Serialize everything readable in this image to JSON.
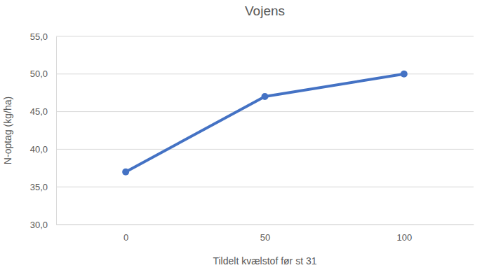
{
  "chart_data": {
    "type": "line",
    "title": "Vojens",
    "x_label": "Tildelt kvælstof før st 31",
    "y_label": "N-optag (kg/ha)",
    "categories": [
      "0",
      "50",
      "100"
    ],
    "values": [
      37,
      47,
      50
    ],
    "color": "#4472c4",
    "marker": "circle",
    "line_style": "solid",
    "ylim": [
      30,
      55
    ],
    "yticks": [
      {
        "value": 30,
        "label": "30,0"
      },
      {
        "value": 35,
        "label": "35,0"
      },
      {
        "value": 40,
        "label": "40,0"
      },
      {
        "value": 45,
        "label": "45,0"
      },
      {
        "value": 50,
        "label": "50,0"
      },
      {
        "value": 55,
        "label": "55,0"
      }
    ],
    "grid": true
  }
}
